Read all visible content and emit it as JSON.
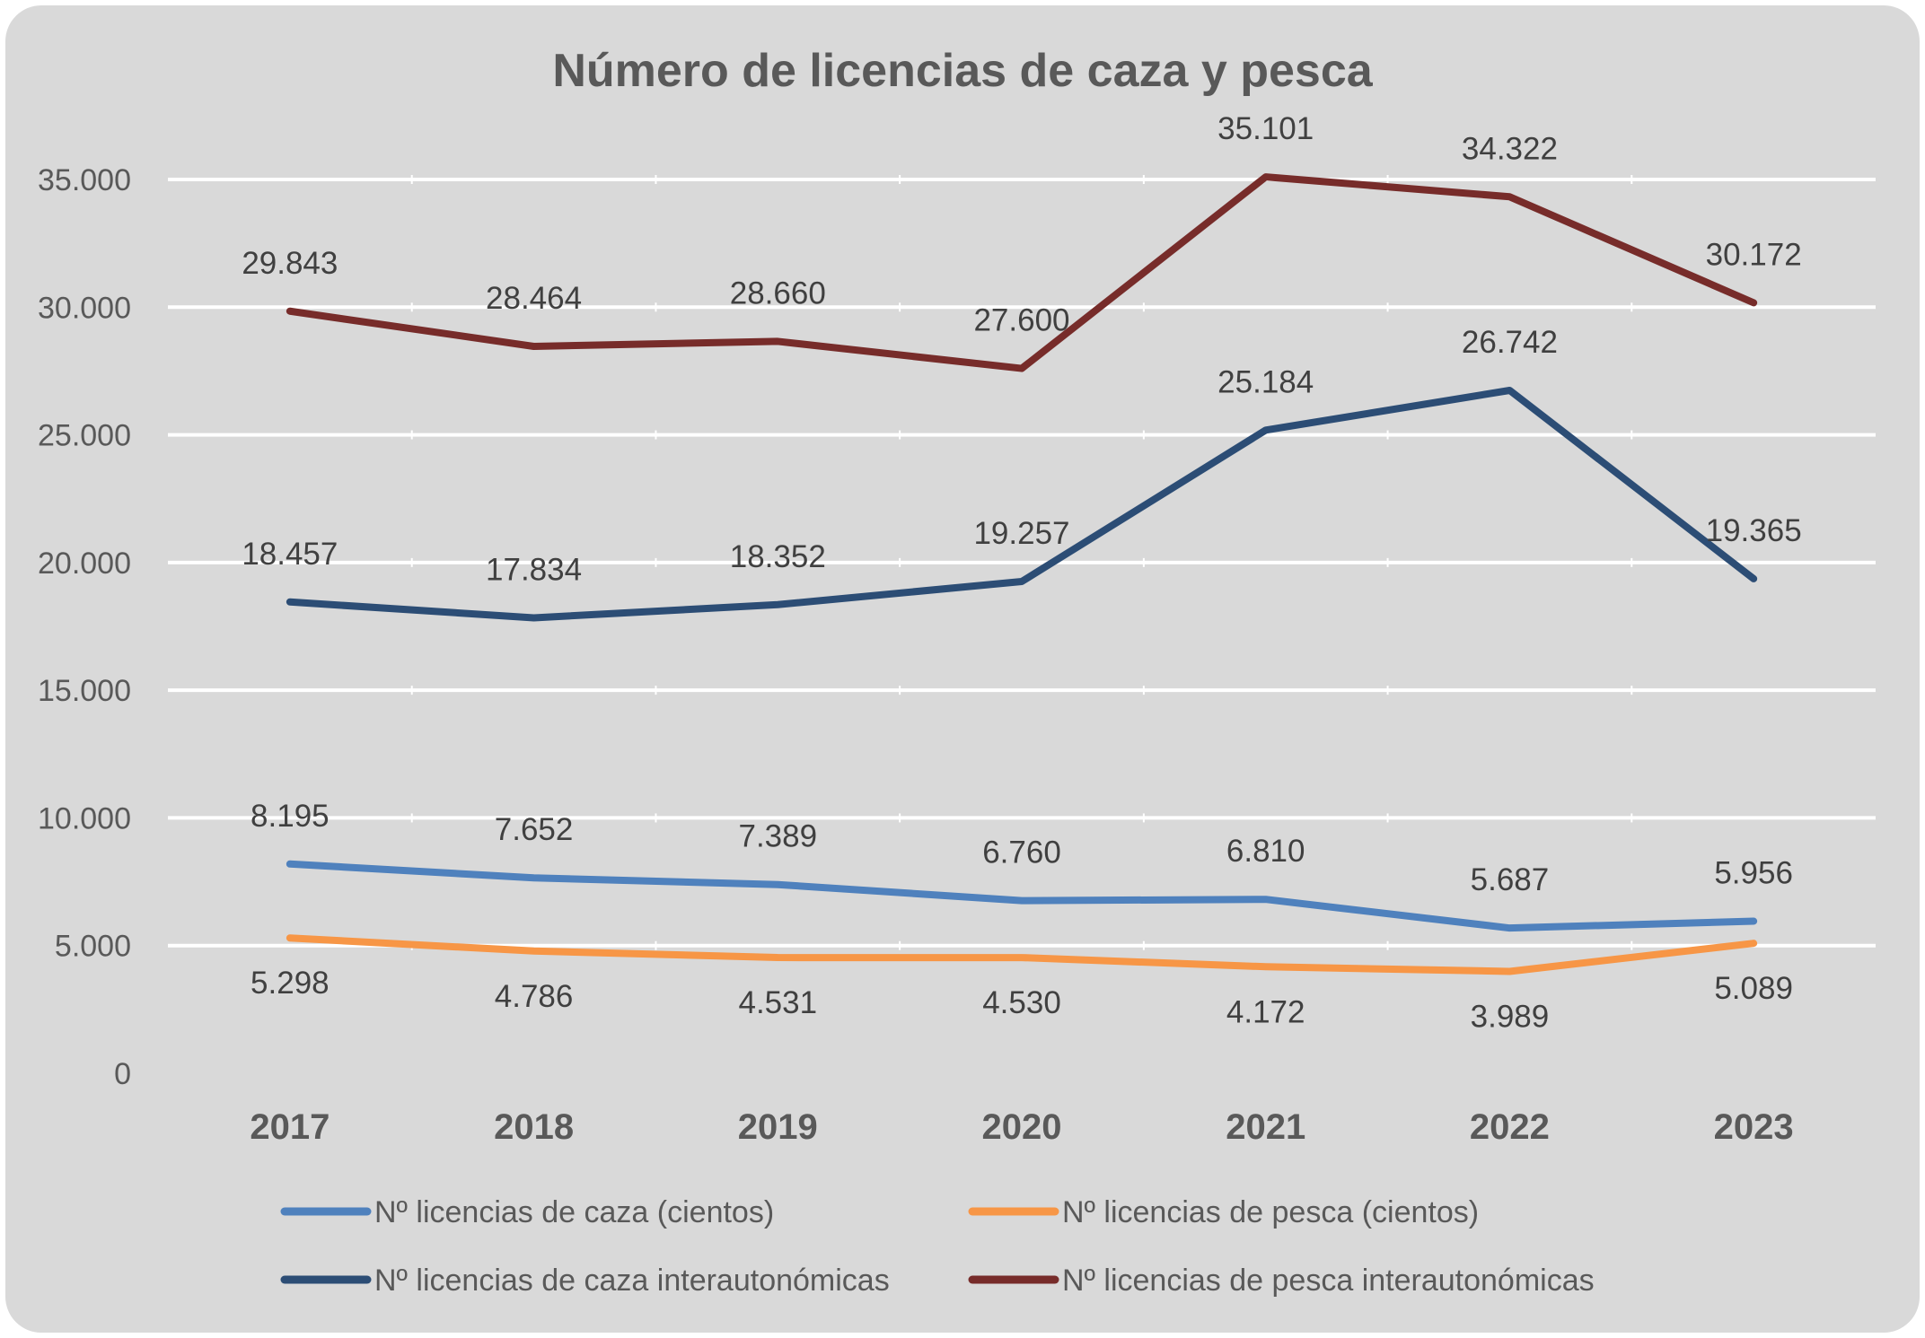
{
  "chart_data": {
    "type": "line",
    "title": "Número de licencias de caza y pesca",
    "xlabel": "",
    "ylabel": "",
    "categories": [
      "2017",
      "2018",
      "2019",
      "2020",
      "2021",
      "2022",
      "2023"
    ],
    "ylim": [
      0,
      35000
    ],
    "yticks": [
      0,
      5000,
      10000,
      15000,
      20000,
      25000,
      30000,
      35000
    ],
    "ytick_labels": [
      "0",
      "5.000",
      "10.000",
      "15.000",
      "20.000",
      "25.000",
      "30.000",
      "35.000"
    ],
    "grid": true,
    "legend_position": "bottom",
    "series": [
      {
        "name": "Nº licencias de caza (cientos)",
        "color": "#4f81bd",
        "label_pos": "above",
        "values": [
          8195,
          7652,
          7389,
          6760,
          6810,
          5687,
          5956
        ],
        "labels": [
          "8.195",
          "7.652",
          "7.389",
          "6.760",
          "6.810",
          "5.687",
          "5.956"
        ]
      },
      {
        "name": "Nº licencias de pesca (cientos)",
        "color": "#f79646",
        "label_pos": "below",
        "values": [
          5298,
          4786,
          4531,
          4530,
          4172,
          3989,
          5089
        ],
        "labels": [
          "5.298",
          "4.786",
          "4.531",
          "4.530",
          "4.172",
          "3.989",
          "5.089"
        ]
      },
      {
        "name": "Nº licencias de caza interautonómicas",
        "color": "#2c4d75",
        "label_pos": "above",
        "values": [
          18457,
          17834,
          18352,
          19257,
          25184,
          26742,
          19365
        ],
        "labels": [
          "18.457",
          "17.834",
          "18.352",
          "19.257",
          "25.184",
          "26.742",
          "19.365"
        ]
      },
      {
        "name": "Nº licencias de pesca interautonómicas",
        "color": "#772c2a",
        "label_pos": "above",
        "values": [
          29843,
          28464,
          28660,
          27600,
          35101,
          34322,
          30172
        ],
        "labels": [
          "29.843",
          "28.464",
          "28.660",
          "27.600",
          "35.101",
          "34.322",
          "30.172"
        ]
      }
    ]
  }
}
